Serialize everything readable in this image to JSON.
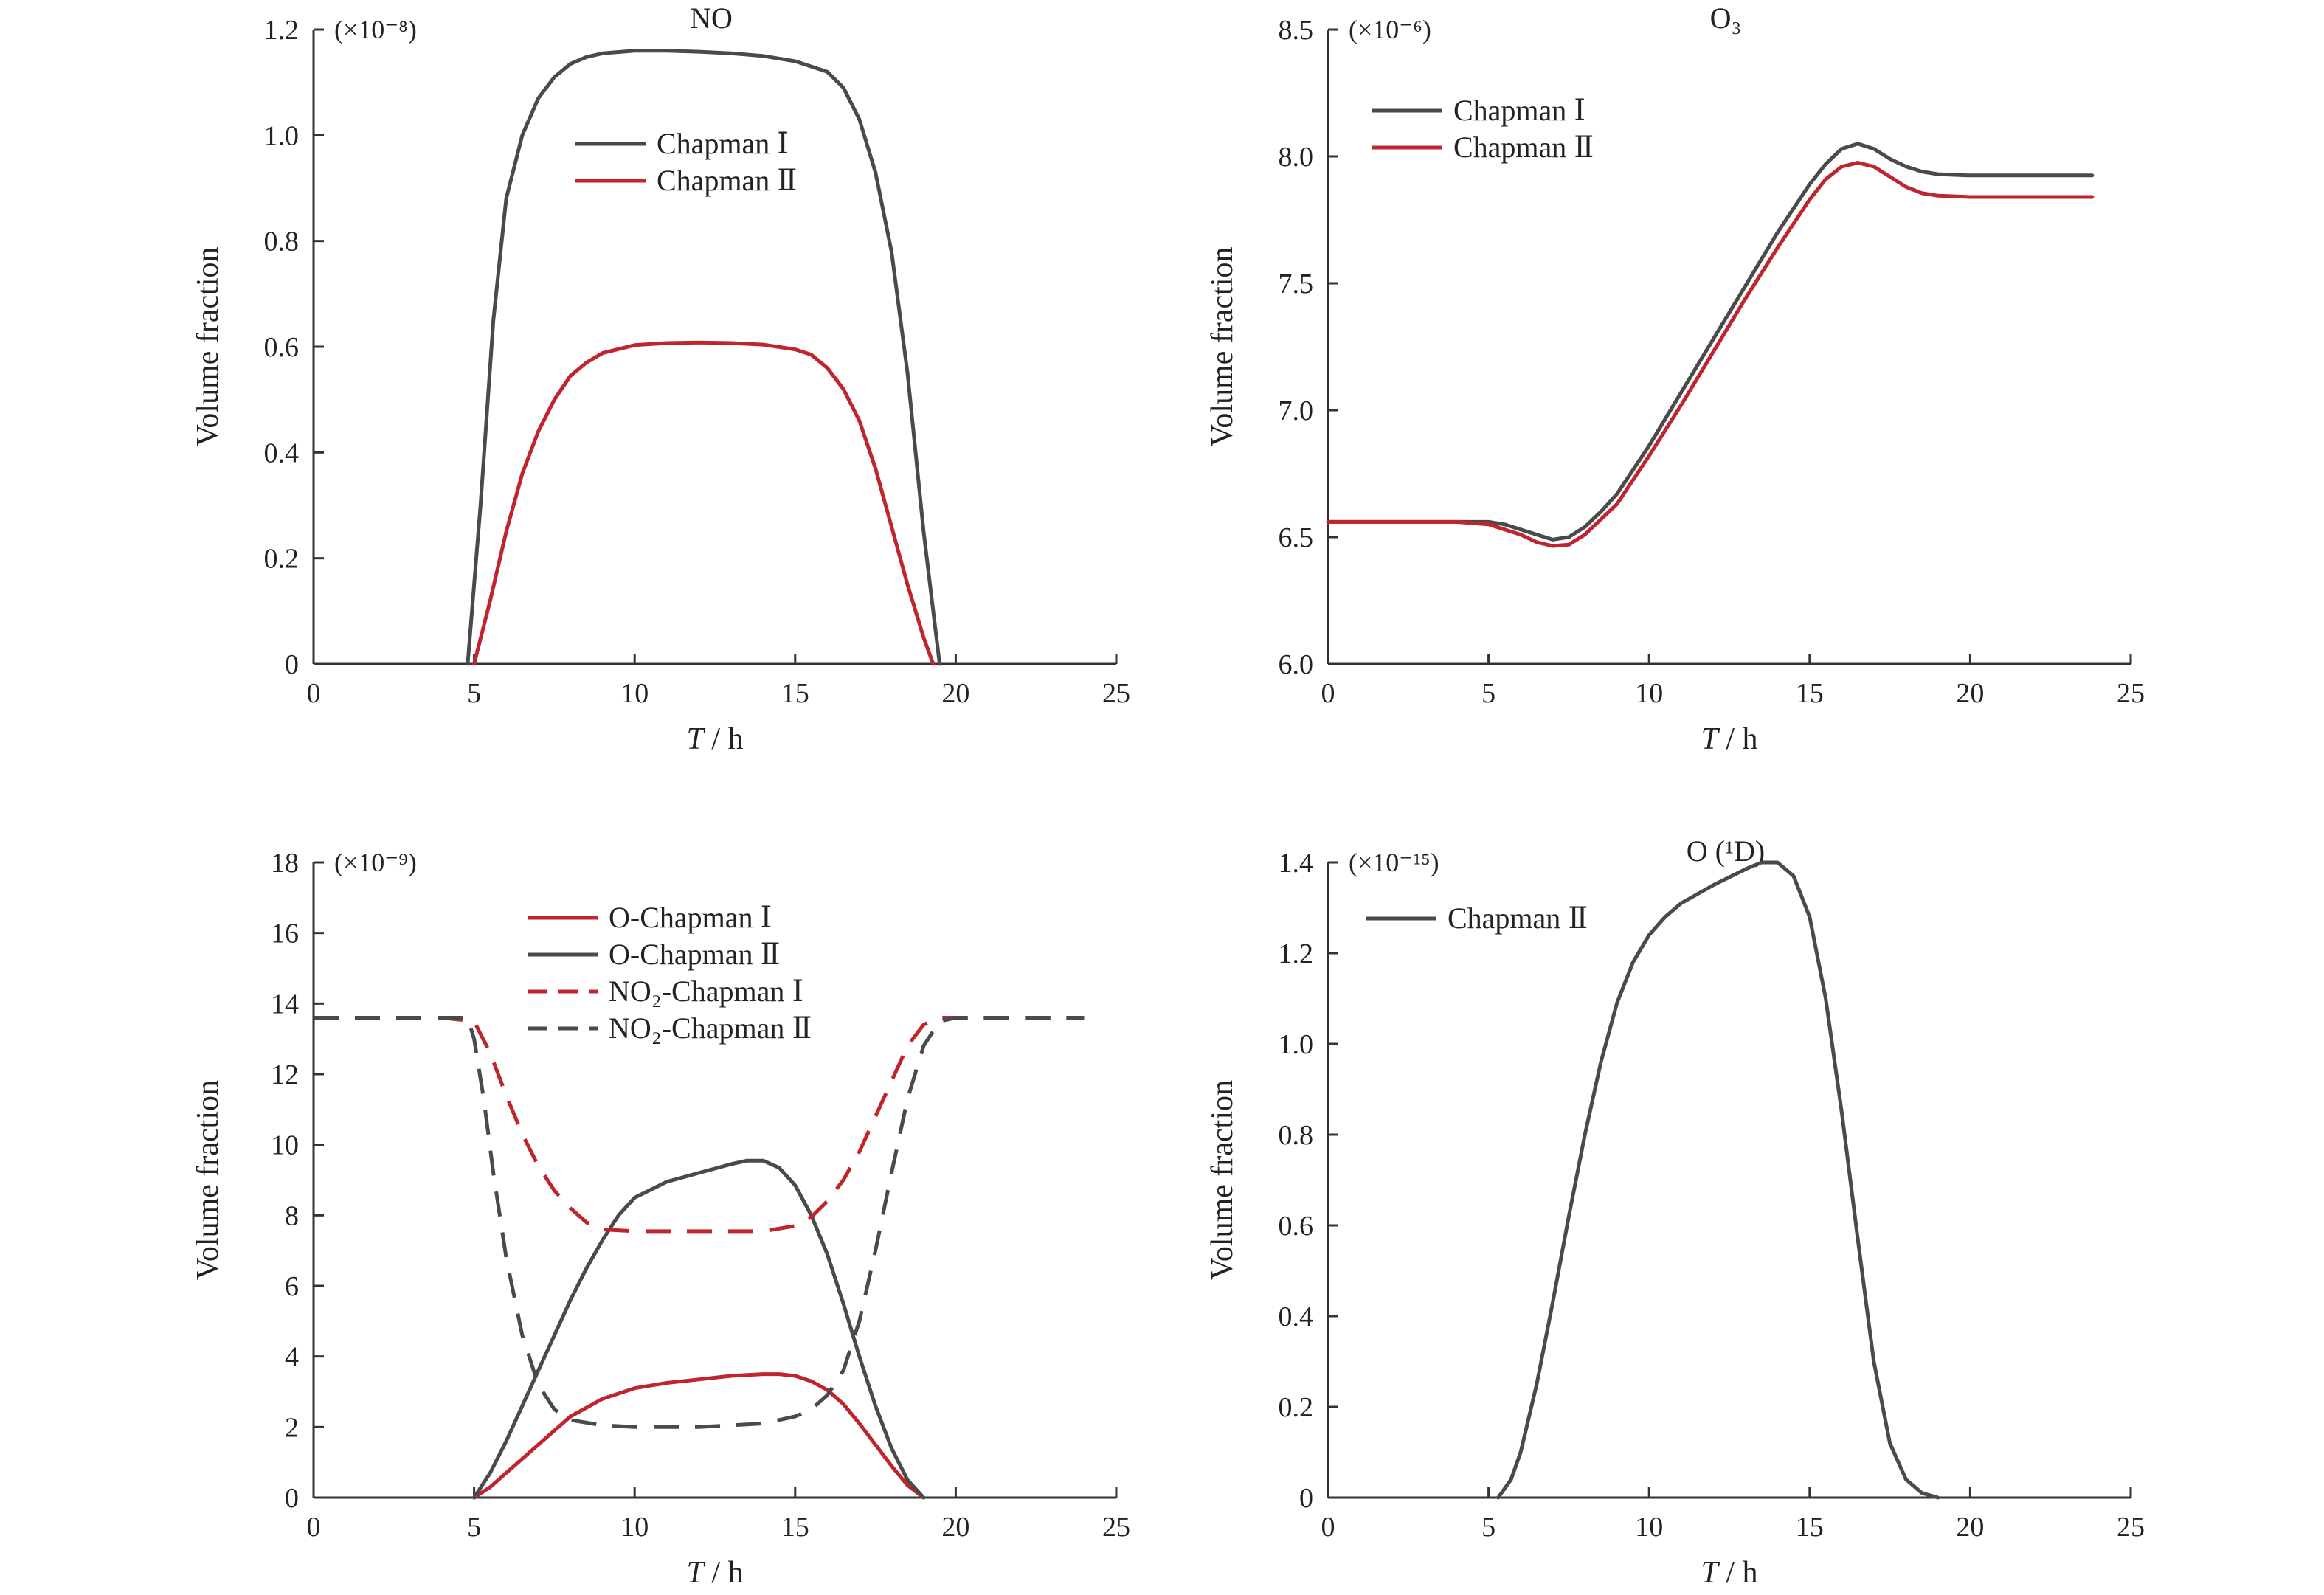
{
  "chart_data": [
    {
      "type": "line",
      "title": "NO",
      "xlabel": "T / h",
      "ylabel": "Volume fraction",
      "scale_label": "(×10⁻⁸)",
      "xlim": [
        0,
        25
      ],
      "ylim": [
        0,
        1.2
      ],
      "xticks": [
        "0",
        "5",
        "10",
        "15",
        "20",
        "25"
      ],
      "yticks": [
        "0",
        "0.2",
        "0.4",
        "0.6",
        "0.8",
        "1.0",
        "1.2"
      ],
      "legend_position": "top-center",
      "series": [
        {
          "name": "Chapman Ⅰ",
          "color": "#4a4a4a",
          "dash": "solid",
          "x": [
            4.8,
            5.2,
            5.6,
            6.0,
            6.5,
            7.0,
            7.5,
            8.0,
            8.5,
            9.0,
            10.0,
            11.0,
            12.0,
            13.0,
            14.0,
            15.0,
            16.0,
            16.5,
            17.0,
            17.5,
            18.0,
            18.5,
            19.0,
            19.5
          ],
          "y": [
            0,
            0.3,
            0.65,
            0.88,
            1.0,
            1.07,
            1.11,
            1.135,
            1.148,
            1.155,
            1.16,
            1.16,
            1.158,
            1.155,
            1.15,
            1.14,
            1.12,
            1.09,
            1.03,
            0.93,
            0.78,
            0.55,
            0.25,
            0
          ]
        },
        {
          "name": "Chapman Ⅱ",
          "color": "#c0242c",
          "dash": "solid",
          "x": [
            5.0,
            5.5,
            6.0,
            6.5,
            7.0,
            7.5,
            8.0,
            8.5,
            9.0,
            10.0,
            11.0,
            12.0,
            13.0,
            14.0,
            15.0,
            15.5,
            16.0,
            16.5,
            17.0,
            17.5,
            18.0,
            18.5,
            19.0,
            19.3
          ],
          "y": [
            0,
            0.12,
            0.25,
            0.36,
            0.44,
            0.5,
            0.545,
            0.57,
            0.588,
            0.603,
            0.607,
            0.608,
            0.607,
            0.604,
            0.595,
            0.585,
            0.56,
            0.52,
            0.46,
            0.37,
            0.26,
            0.15,
            0.05,
            0
          ]
        }
      ]
    },
    {
      "type": "line",
      "title": "O₃",
      "xlabel": "T / h",
      "ylabel": "Volume fraction",
      "scale_label": "(×10⁻⁶)",
      "xlim": [
        0,
        25
      ],
      "ylim": [
        6.0,
        8.5
      ],
      "xticks": [
        "0",
        "5",
        "10",
        "15",
        "20",
        "25"
      ],
      "yticks": [
        "6.0",
        "6.5",
        "7.0",
        "7.5",
        "8.0",
        "8.5"
      ],
      "legend_position": "top-left",
      "series": [
        {
          "name": "Chapman Ⅰ",
          "color": "#4a4a4a",
          "dash": "solid",
          "x": [
            0,
            1,
            2,
            3,
            4,
            5,
            5.5,
            6,
            6.5,
            7,
            7.5,
            8,
            8.5,
            9,
            10,
            11,
            12,
            13,
            14,
            15,
            15.5,
            16,
            16.5,
            17,
            17.5,
            18,
            18.5,
            19,
            20,
            21,
            22,
            23,
            23.8
          ],
          "y": [
            6.56,
            6.56,
            6.56,
            6.56,
            6.56,
            6.56,
            6.55,
            6.53,
            6.51,
            6.49,
            6.5,
            6.54,
            6.6,
            6.67,
            6.86,
            7.07,
            7.28,
            7.49,
            7.7,
            7.89,
            7.97,
            8.03,
            8.05,
            8.03,
            7.99,
            7.96,
            7.94,
            7.93,
            7.925,
            7.925,
            7.925,
            7.925,
            7.925
          ]
        },
        {
          "name": "Chapman Ⅱ",
          "color": "#c0242c",
          "dash": "solid",
          "x": [
            0,
            1,
            2,
            3,
            4,
            5,
            5.5,
            6,
            6.5,
            7,
            7.5,
            8,
            8.5,
            9,
            10,
            11,
            12,
            13,
            14,
            15,
            15.5,
            16,
            16.5,
            17,
            17.5,
            18,
            18.5,
            19,
            20,
            21,
            22,
            23,
            23.8
          ],
          "y": [
            6.56,
            6.56,
            6.56,
            6.56,
            6.56,
            6.55,
            6.53,
            6.51,
            6.48,
            6.465,
            6.47,
            6.51,
            6.57,
            6.63,
            6.82,
            7.02,
            7.23,
            7.44,
            7.64,
            7.83,
            7.91,
            7.96,
            7.975,
            7.96,
            7.92,
            7.88,
            7.855,
            7.845,
            7.84,
            7.84,
            7.84,
            7.84,
            7.84
          ]
        }
      ]
    },
    {
      "type": "line",
      "title": "",
      "xlabel": "T / h",
      "ylabel": "Volume fraction",
      "scale_label": "(×10⁻⁹)",
      "xlim": [
        0,
        25
      ],
      "ylim": [
        0,
        18
      ],
      "xticks": [
        "0",
        "5",
        "10",
        "15",
        "20",
        "25"
      ],
      "yticks": [
        "0",
        "2",
        "4",
        "6",
        "8",
        "10",
        "12",
        "14",
        "16",
        "18"
      ],
      "legend_position": "top-center",
      "series": [
        {
          "name": "O-Chapman Ⅰ",
          "color": "#c0242c",
          "dash": "solid",
          "x": [
            5.0,
            5.5,
            6.0,
            6.5,
            7.0,
            8.0,
            9.0,
            10.0,
            11.0,
            12.0,
            13.0,
            14.0,
            14.5,
            15.0,
            15.5,
            16.0,
            16.5,
            17.0,
            17.5,
            18.0,
            18.5,
            19.0
          ],
          "y": [
            0,
            0.3,
            0.7,
            1.1,
            1.5,
            2.3,
            2.8,
            3.1,
            3.25,
            3.35,
            3.45,
            3.5,
            3.5,
            3.45,
            3.3,
            3.05,
            2.65,
            2.1,
            1.5,
            0.9,
            0.35,
            0
          ]
        },
        {
          "name": "O-Chapman Ⅱ",
          "color": "#4a4a4a",
          "dash": "solid",
          "x": [
            5.0,
            5.5,
            6.0,
            6.5,
            7.0,
            7.5,
            8.0,
            8.5,
            9.0,
            9.5,
            10.0,
            11.0,
            12.0,
            13.0,
            13.5,
            14.0,
            14.5,
            15.0,
            15.5,
            16.0,
            16.5,
            17.0,
            17.5,
            18.0,
            18.5,
            19.0
          ],
          "y": [
            0,
            0.7,
            1.6,
            2.6,
            3.6,
            4.6,
            5.6,
            6.5,
            7.3,
            8.0,
            8.5,
            8.95,
            9.2,
            9.45,
            9.55,
            9.55,
            9.35,
            8.85,
            8.0,
            6.9,
            5.5,
            4.0,
            2.6,
            1.4,
            0.5,
            0
          ]
        },
        {
          "name": "NO₂-Chapman Ⅰ",
          "color": "#c0242c",
          "dash": "dashed",
          "x": [
            0,
            1,
            2,
            3,
            4,
            5.0,
            5.5,
            6.0,
            6.5,
            7.0,
            7.5,
            8.0,
            8.5,
            9.0,
            10.0,
            11.0,
            12.0,
            13.0,
            14.0,
            15.0,
            15.5,
            16.0,
            16.5,
            17.0,
            17.5,
            18.0,
            18.5,
            19.0,
            19.5,
            20,
            21,
            22,
            23,
            24
          ],
          "y": [
            13.6,
            13.6,
            13.6,
            13.6,
            13.6,
            13.5,
            12.6,
            11.4,
            10.3,
            9.4,
            8.7,
            8.2,
            7.8,
            7.6,
            7.55,
            7.55,
            7.55,
            7.55,
            7.55,
            7.7,
            7.95,
            8.4,
            9.0,
            9.8,
            10.8,
            11.8,
            12.8,
            13.4,
            13.6,
            13.6,
            13.6,
            13.6,
            13.6,
            13.6
          ]
        },
        {
          "name": "NO₂-Chapman Ⅱ",
          "color": "#4a4a4a",
          "dash": "dashed",
          "x": [
            0,
            1,
            2,
            3,
            4,
            4.8,
            5.0,
            5.3,
            5.6,
            6.0,
            6.5,
            7.0,
            7.5,
            8.0,
            9.0,
            10.0,
            11.0,
            12.0,
            13.0,
            14.0,
            15.0,
            15.5,
            16.0,
            16.5,
            17.0,
            17.5,
            18.0,
            18.5,
            19.0,
            19.5,
            20,
            21,
            22,
            23,
            24
          ],
          "y": [
            13.6,
            13.6,
            13.6,
            13.6,
            13.6,
            13.6,
            13.0,
            11.3,
            9.2,
            6.8,
            4.6,
            3.2,
            2.5,
            2.2,
            2.05,
            2.0,
            2.0,
            2.0,
            2.05,
            2.1,
            2.3,
            2.5,
            2.9,
            3.6,
            5.0,
            7.0,
            9.2,
            11.3,
            12.8,
            13.5,
            13.6,
            13.6,
            13.6,
            13.6,
            13.6
          ]
        }
      ]
    },
    {
      "type": "line",
      "title": "O (¹D)",
      "xlabel": "T / h",
      "ylabel": "Volume fraction",
      "scale_label": "(×10⁻¹⁵)",
      "xlim": [
        0,
        25
      ],
      "ylim": [
        0,
        1.4
      ],
      "xticks": [
        "0",
        "5",
        "10",
        "15",
        "20",
        "25"
      ],
      "yticks": [
        "0",
        "0.2",
        "0.4",
        "0.6",
        "0.8",
        "1.0",
        "1.2",
        "1.4"
      ],
      "legend_position": "top-left",
      "series": [
        {
          "name": "Chapman Ⅱ",
          "color": "#4a4a4a",
          "dash": "solid",
          "x": [
            5.3,
            5.7,
            6.0,
            6.5,
            7.0,
            7.5,
            8.0,
            8.5,
            9.0,
            9.5,
            10.0,
            10.5,
            11.0,
            12.0,
            13.0,
            13.5,
            14.0,
            14.5,
            15.0,
            15.5,
            16.0,
            16.5,
            17.0,
            17.5,
            18.0,
            18.5,
            19.0
          ],
          "y": [
            0,
            0.04,
            0.1,
            0.25,
            0.43,
            0.62,
            0.8,
            0.96,
            1.09,
            1.18,
            1.24,
            1.28,
            1.31,
            1.35,
            1.385,
            1.4,
            1.4,
            1.37,
            1.28,
            1.1,
            0.85,
            0.57,
            0.3,
            0.12,
            0.04,
            0.01,
            0
          ]
        }
      ]
    }
  ]
}
